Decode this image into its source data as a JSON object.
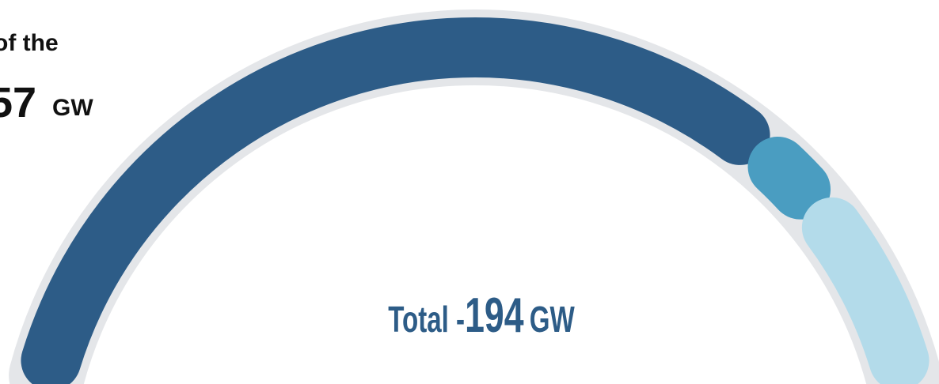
{
  "chart_data": {
    "type": "gauge",
    "side_text": {
      "line1": "of the",
      "value": "57",
      "unit": "GW"
    },
    "total_prefix": "Total -",
    "total": 194,
    "total_unit": "GW",
    "segments": [
      {
        "value": 150,
        "color": "#2d5c87"
      },
      {
        "value": 14,
        "color": "#4a9dc1"
      },
      {
        "value": 30,
        "color": "#b3dbea"
      }
    ],
    "track_color": "#e4e6e9"
  }
}
